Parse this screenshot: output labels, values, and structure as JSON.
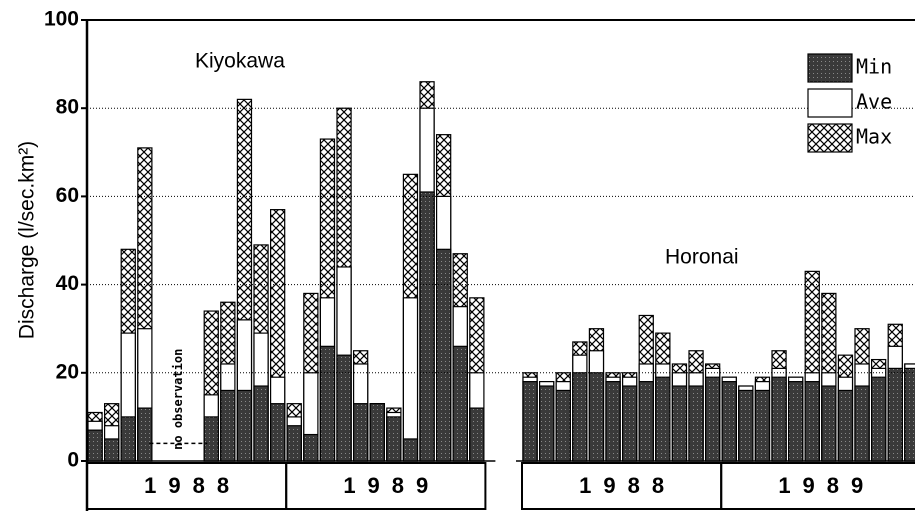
{
  "chart_data": {
    "type": "bar",
    "ylabel": "Discharge (l/sec.km²)",
    "ylim": [
      0,
      100
    ],
    "yticks": [
      0,
      20,
      40,
      60,
      80,
      100
    ],
    "grid": true,
    "legend": "upper right",
    "annotation": "no observation",
    "series": [
      {
        "name": "Min",
        "color": "#3a3a3a"
      },
      {
        "name": "Ave",
        "color": "#ffffff"
      },
      {
        "name": "Max",
        "color": "#ffffff",
        "pattern": "crosshatch"
      }
    ],
    "panels": [
      {
        "title": "Kiyokawa",
        "years": [
          "1988",
          "1989"
        ],
        "categories": [
          null,
          null,
          null,
          null,
          null,
          null,
          null,
          null,
          null,
          null,
          null,
          null,
          null,
          null,
          null,
          null,
          null,
          null,
          null,
          null,
          null,
          null,
          null,
          null
        ],
        "series": [
          {
            "values": [
              7,
              5,
              10,
              12,
              null,
              null,
              null,
              10,
              16,
              16,
              17,
              13,
              8,
              6,
              26,
              24,
              13,
              13,
              10,
              5,
              61,
              48,
              26,
              12
            ]
          },
          {
            "values": [
              9,
              8,
              29,
              30,
              null,
              null,
              null,
              15,
              22,
              32,
              29,
              19,
              10,
              20,
              37,
              44,
              22,
              13,
              11,
              37,
              80,
              60,
              35,
              20
            ]
          },
          {
            "values": [
              11,
              13,
              48,
              71,
              null,
              null,
              null,
              34,
              36,
              82,
              49,
              57,
              13,
              38,
              73,
              80,
              25,
              13,
              12,
              65,
              86,
              74,
              47,
              37
            ]
          }
        ]
      },
      {
        "title": "Horonai",
        "years": [
          "1988",
          "1989"
        ],
        "categories": [
          null,
          null,
          null,
          null,
          null,
          null,
          null,
          null,
          null,
          null,
          null,
          null,
          null,
          null,
          null,
          null,
          null,
          null,
          null,
          null,
          null,
          null,
          null,
          null
        ],
        "series": [
          {
            "values": [
              18,
              17,
              16,
              20,
              20,
              18,
              17,
              18,
              19,
              17,
              17,
              19,
              18,
              16,
              16,
              19,
              18,
              18,
              17,
              16,
              17,
              19,
              21,
              21
            ]
          },
          {
            "values": [
              19,
              18,
              18,
              24,
              25,
              19,
              19,
              22,
              22,
              20,
              20,
              21,
              19,
              17,
              18,
              21,
              19,
              20,
              20,
              19,
              22,
              21,
              26,
              22
            ]
          },
          {
            "values": [
              20,
              18,
              20,
              27,
              30,
              20,
              20,
              33,
              29,
              22,
              25,
              22,
              19,
              17,
              19,
              25,
              19,
              43,
              38,
              24,
              30,
              23,
              31,
              22
            ]
          }
        ]
      }
    ]
  }
}
